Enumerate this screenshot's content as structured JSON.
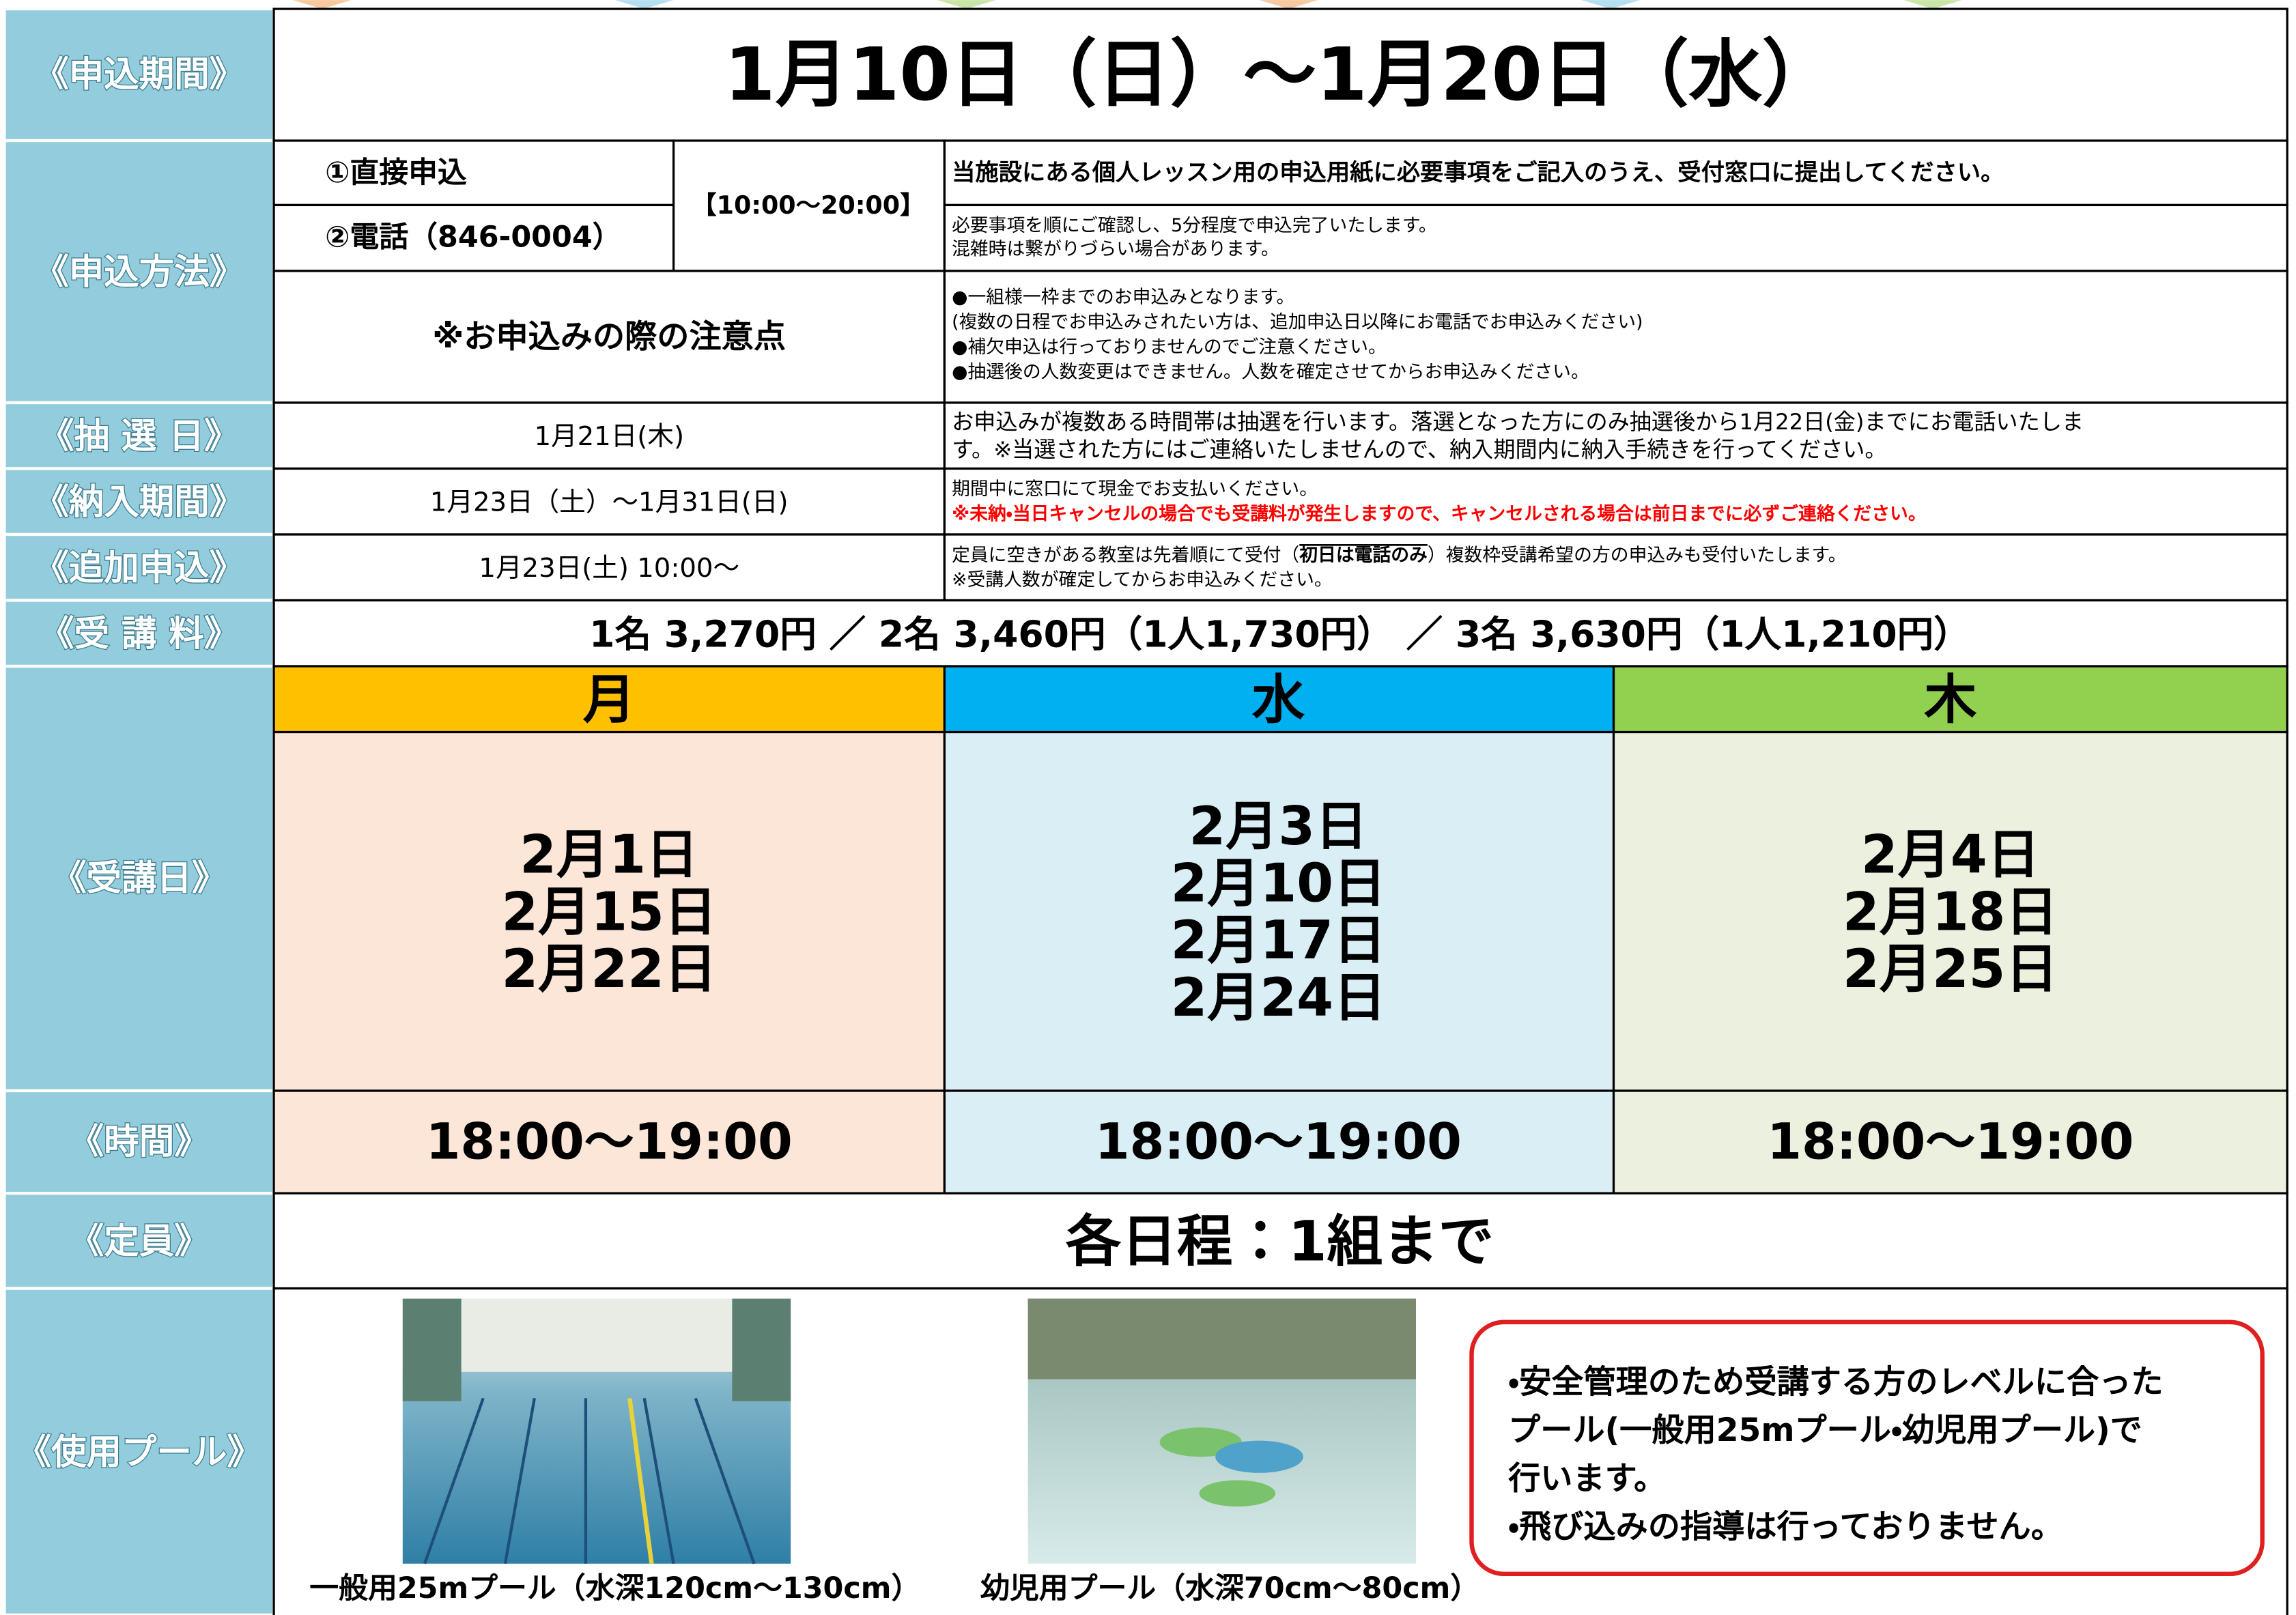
{
  "application_period": {
    "label": "《申込期間》",
    "value": "1月10日（日）〜1月20日（水）"
  },
  "application_method": {
    "label": "《申込方法》",
    "methods": [
      "①直接申込",
      "②電話（846-0004）"
    ],
    "hours": "【10:00〜20:00】",
    "method_descriptions": [
      [
        "当施設にある個人レッスン用の申込用紙に必要事項をご記入のうえ、受付窓口に提出してください。"
      ],
      [
        "必要事項を順にご確認し、5分程度で申込完了いたします。",
        "混雑時は繋がりづらい場合があります。"
      ]
    ],
    "notes_heading": "※お申込みの際の注意点",
    "notes": [
      "●一組様一枠までのお申込みとなります。",
      "(複数の日程でお申込みされたい方は、追加申込日以降にお電話でお申込みください)",
      "●補欠申込は行っておりませんのでご注意ください。",
      "●抽選後の人数変更はできません。人数を確定させてからお申込みください。"
    ]
  },
  "lottery": {
    "label": "《抽 選 日》",
    "value": "1月21日(木)",
    "description": [
      "お申込みが複数ある時間帯は抽選を行います。落選となった方にのみ抽選後から1月22日(金)までにお電話いたしま",
      "す。※当選された方にはご連絡いたしませんので、納入期間内に納入手続きを行ってください。"
    ]
  },
  "payment": {
    "label": "《納入期間》",
    "value": "1月23日（土）〜1月31日(日)",
    "description": "期間中に窓口にて現金でお支払いください。",
    "warning": "※未納・当日キャンセルの場合でも受講料が発生しますので、キャンセルされる場合は前日までに必ずご連絡ください。"
  },
  "additional": {
    "label": "《追加申込》",
    "value": "1月23日(土) 10:00〜",
    "description_parts": [
      "定員に空きがある教室は先着順にて受付（",
      "初日は電話のみ",
      "）複数枠受講希望の方の申込みも受付いたします。"
    ],
    "description_line2": "※受講人数が確定してからお申込みください。"
  },
  "fee": {
    "label": "《受 講 料》",
    "value": "1名 3,270円 ／ 2名 3,460円（1人1,730円） ／ 3名 3,630円（1人1,210円）"
  },
  "schedule": {
    "label": "《受講日》",
    "days": [
      {
        "day": "月",
        "dates": [
          "2月1日",
          "2月15日",
          "2月22日"
        ]
      },
      {
        "day": "水",
        "dates": [
          "2月3日",
          "2月10日",
          "2月17日",
          "2月24日"
        ]
      },
      {
        "day": "木",
        "dates": [
          "2月4日",
          "2月18日",
          "2月25日"
        ]
      }
    ]
  },
  "time": {
    "label": "《時間》",
    "values": [
      "18:00〜19:00",
      "18:00〜19:00",
      "18:00〜19:00"
    ]
  },
  "capacity": {
    "label": "《定員》",
    "value": "各日程：1組まで"
  },
  "pools": {
    "label": "《使用プール》",
    "captions": [
      "一般用25mプール（水深120cm〜130cm）",
      "幼児用プール（水深70cm〜80cm）"
    ],
    "notes": [
      "・安全管理のため受講する方のレベルに合った",
      "プール(一般用25mプール・幼児用プール)で",
      "行います。",
      "・飛び込みの指導は行っておりません。"
    ]
  }
}
